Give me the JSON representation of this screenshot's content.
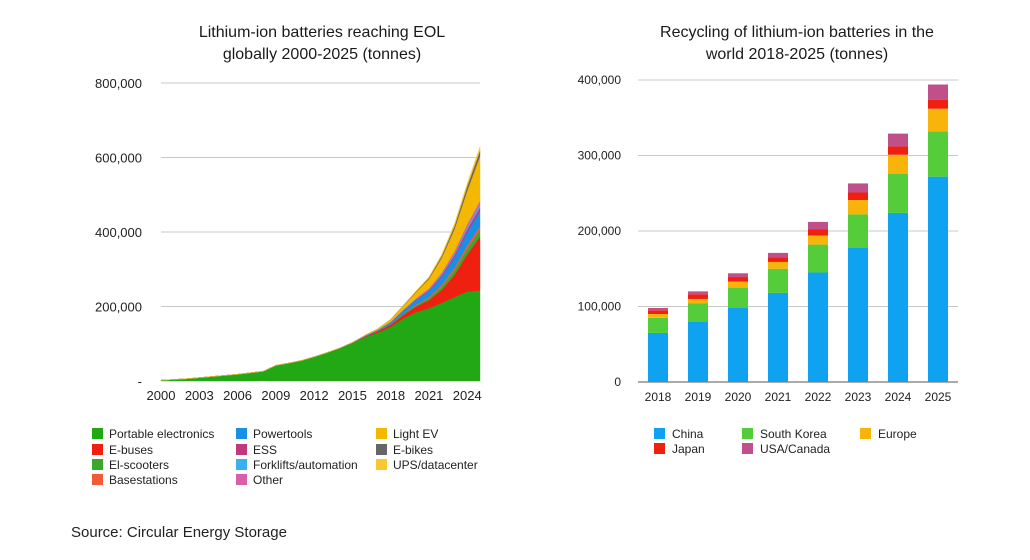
{
  "source": "Source: Circular Energy Storage",
  "chart_data": [
    {
      "type": "area",
      "title_lines": [
        "Lithium-ion batteries reaching EOL",
        "globally 2000-2025  (tonnes)"
      ],
      "xlabel": "",
      "ylabel": "",
      "ylim": [
        0,
        800000
      ],
      "y_ticks": [
        "-",
        "200,000",
        "400,000",
        "600,000",
        "800,000"
      ],
      "x_ticks": [
        "2000",
        "2003",
        "2006",
        "2009",
        "2012",
        "2015",
        "2018",
        "2021",
        "2024"
      ],
      "x": [
        2000,
        2001,
        2002,
        2003,
        2004,
        2005,
        2006,
        2007,
        2008,
        2009,
        2010,
        2011,
        2012,
        2013,
        2014,
        2015,
        2016,
        2017,
        2018,
        2019,
        2020,
        2021,
        2022,
        2023,
        2024,
        2025
      ],
      "stacked": true,
      "grid": true,
      "legend_position": "bottom",
      "series": [
        {
          "name": "Portable electronics",
          "color": "#22a815",
          "values": [
            2000,
            4000,
            6000,
            9000,
            12000,
            15000,
            18000,
            22000,
            26000,
            42000,
            48000,
            55000,
            65000,
            76000,
            88000,
            102000,
            118000,
            130000,
            145000,
            168000,
            185000,
            195000,
            210000,
            225000,
            240000,
            243000
          ]
        },
        {
          "name": "E-buses",
          "color": "#f02010",
          "values": [
            0,
            0,
            0,
            0,
            0,
            0,
            0,
            0,
            0,
            0,
            0,
            0,
            0,
            0,
            0,
            500,
            2000,
            4000,
            6000,
            10000,
            15000,
            22000,
            35000,
            60000,
            100000,
            145000
          ]
        },
        {
          "name": "El-scooters",
          "color": "#3aa82a",
          "values": [
            0,
            0,
            0,
            0,
            0,
            0,
            0,
            0,
            0,
            0,
            0,
            0,
            0,
            0,
            0,
            0,
            0,
            500,
            1000,
            2000,
            3000,
            5000,
            8000,
            12000,
            15000,
            18000
          ]
        },
        {
          "name": "Basestations",
          "color": "#f25a3a",
          "values": [
            0,
            0,
            0,
            0,
            0,
            0,
            0,
            0,
            0,
            0,
            0,
            0,
            0,
            0,
            0,
            0,
            0,
            0,
            500,
            1000,
            2000,
            3000,
            5000,
            7000,
            9000,
            10000
          ]
        },
        {
          "name": "Powertools",
          "color": "#1890e8",
          "values": [
            0,
            0,
            0,
            0,
            0,
            0,
            0,
            0,
            0,
            0,
            0,
            0,
            0,
            0,
            500,
            1000,
            2000,
            3000,
            5000,
            8000,
            12000,
            16000,
            22000,
            28000,
            35000,
            40000
          ]
        },
        {
          "name": "ESS",
          "color": "#c0397a",
          "values": [
            0,
            0,
            0,
            0,
            0,
            0,
            0,
            0,
            0,
            0,
            0,
            0,
            0,
            0,
            0,
            0,
            0,
            0,
            500,
            1000,
            2000,
            3000,
            4000,
            6000,
            8000,
            10000
          ]
        },
        {
          "name": "Forklifts/automation",
          "color": "#3ab0f0",
          "values": [
            0,
            0,
            0,
            0,
            0,
            0,
            0,
            0,
            0,
            0,
            0,
            0,
            0,
            0,
            0,
            0,
            0,
            0,
            500,
            1000,
            1500,
            2000,
            3000,
            4000,
            6000,
            8000
          ]
        },
        {
          "name": "Other",
          "color": "#d860a8",
          "values": [
            0,
            0,
            0,
            0,
            0,
            0,
            0,
            0,
            0,
            0,
            0,
            0,
            0,
            0,
            0,
            0,
            0,
            0,
            500,
            1000,
            2000,
            3000,
            4000,
            6000,
            8000,
            10000
          ]
        },
        {
          "name": "Light EV",
          "color": "#f5b800",
          "values": [
            0,
            0,
            0,
            0,
            0,
            0,
            0,
            0,
            0,
            0,
            0,
            0,
            0,
            0,
            0,
            0,
            1000,
            3000,
            6000,
            10000,
            16000,
            25000,
            40000,
            60000,
            90000,
            120000
          ]
        },
        {
          "name": "E-bikes",
          "color": "#666666",
          "values": [
            0,
            0,
            0,
            0,
            0,
            0,
            0,
            0,
            0,
            0,
            0,
            0,
            0,
            0,
            0,
            0,
            0,
            0,
            500,
            1000,
            2000,
            3000,
            5000,
            8000,
            12000,
            15000
          ]
        },
        {
          "name": "UPS/datacenter",
          "color": "#f8c830",
          "values": [
            0,
            0,
            0,
            0,
            0,
            0,
            0,
            0,
            0,
            0,
            0,
            0,
            0,
            0,
            0,
            0,
            0,
            0,
            500,
            1000,
            2000,
            3000,
            4000,
            6000,
            8000,
            10000
          ]
        }
      ]
    },
    {
      "type": "bar",
      "stacked": true,
      "title_lines": [
        "Recycling of lithium-ion batteries in the",
        "world 2018-2025 (tonnes)"
      ],
      "xlabel": "",
      "ylabel": "",
      "ylim": [
        0,
        400000
      ],
      "y_ticks": [
        "0",
        "100,000",
        "200,000",
        "300,000",
        "400,000"
      ],
      "categories": [
        "2018",
        "2019",
        "2020",
        "2021",
        "2022",
        "2023",
        "2024",
        "2025"
      ],
      "grid": true,
      "legend_position": "bottom",
      "series": [
        {
          "name": "China",
          "color": "#0fa2f0",
          "values": [
            65000,
            80000,
            98000,
            118000,
            145000,
            178000,
            224000,
            272000
          ]
        },
        {
          "name": "South Korea",
          "color": "#55cc3a",
          "values": [
            20000,
            24000,
            27000,
            32000,
            37000,
            44000,
            52000,
            60000
          ]
        },
        {
          "name": "Europe",
          "color": "#f8b40a",
          "values": [
            5000,
            6000,
            8000,
            9000,
            12000,
            19000,
            25000,
            30000
          ]
        },
        {
          "name": "Japan",
          "color": "#ef2010",
          "values": [
            5000,
            6000,
            6000,
            6000,
            8000,
            10000,
            11000,
            12000
          ]
        },
        {
          "name": "USA/Canada",
          "color": "#c0508a",
          "values": [
            3000,
            4000,
            5000,
            6000,
            10000,
            12000,
            17000,
            20000
          ]
        }
      ]
    }
  ]
}
